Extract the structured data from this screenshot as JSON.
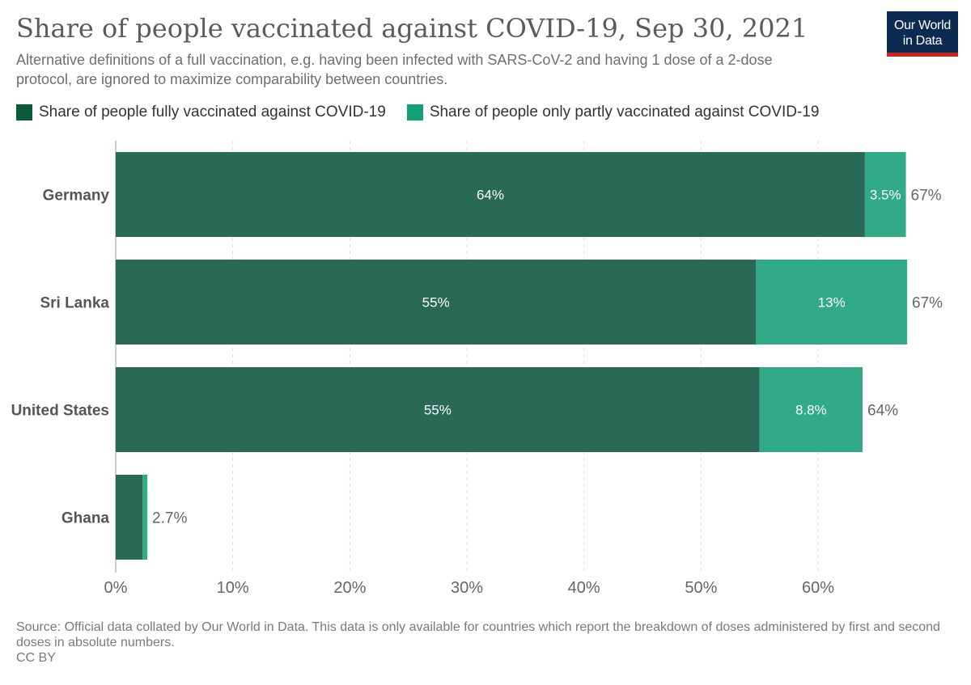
{
  "header": {
    "title": "Share of people vaccinated against COVID-19, Sep 30, 2021",
    "subtitle": "Alternative definitions of a full vaccination, e.g. having been infected with SARS-CoV-2 and having 1 dose of a 2-dose protocol, are ignored to maximize comparability between countries.",
    "logo_line1": "Our World",
    "logo_line2": "in Data"
  },
  "footer": {
    "source": "Source: Official data collated by Our World in Data. This data is only available for countries which report the breakdown of doses administered by first and second doses in absolute numbers.",
    "license": "CC BY"
  },
  "chart_data": {
    "type": "bar",
    "orientation": "horizontal",
    "stacked": true,
    "categories": [
      "Germany",
      "Sri Lanka",
      "United States",
      "Ghana"
    ],
    "series": [
      {
        "name": "Share of people fully vaccinated against COVID-19",
        "color": "#2a6955",
        "legend_color": "#0b5a3a",
        "values": [
          64,
          54.7,
          55,
          2.3
        ],
        "labels": [
          "64%",
          "55%",
          "55%",
          ""
        ]
      },
      {
        "name": "Share of people only partly vaccinated against COVID-19",
        "color": "#31ab86",
        "legend_color": "#12a075",
        "values": [
          3.5,
          12.9,
          8.8,
          0.4
        ],
        "labels": [
          "3.5%",
          "13%",
          "8.8%",
          ""
        ]
      }
    ],
    "totals": [
      "67%",
      "67%",
      "64%",
      "2.7%"
    ],
    "xlim": [
      0,
      67.6
    ],
    "xticks": [
      0,
      10,
      20,
      30,
      40,
      50,
      60
    ],
    "xtick_labels": [
      "0%",
      "10%",
      "20%",
      "30%",
      "40%",
      "50%",
      "60%"
    ],
    "grid": "vertical dashed",
    "legend_position": "top-left"
  }
}
